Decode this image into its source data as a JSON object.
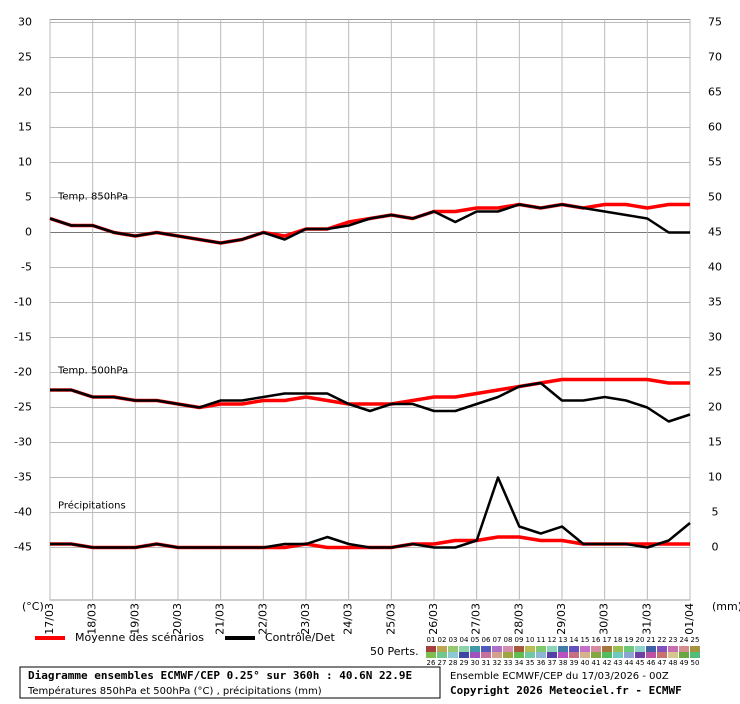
{
  "chart_data": {
    "type": "line",
    "x": [
      0,
      0.5,
      1,
      1.5,
      2,
      2.5,
      3,
      3.5,
      4,
      4.5,
      5,
      5.5,
      6,
      6.5,
      7,
      7.5,
      8,
      8.5,
      9,
      9.5,
      10,
      10.5,
      11,
      11.5,
      12,
      12.5,
      13,
      13.5,
      14,
      14.5,
      15
    ],
    "xlim": [
      0,
      15
    ],
    "xticks": [
      {
        "value": 0,
        "label": "17/03"
      },
      {
        "value": 1,
        "label": "18/03"
      },
      {
        "value": 2,
        "label": "19/03"
      },
      {
        "value": 3,
        "label": "20/03"
      },
      {
        "value": 4,
        "label": "21/03"
      },
      {
        "value": 5,
        "label": "22/03"
      },
      {
        "value": 6,
        "label": "23/03"
      },
      {
        "value": 7,
        "label": "24/03"
      },
      {
        "value": 8,
        "label": "25/03"
      },
      {
        "value": 9,
        "label": "26/03"
      },
      {
        "value": 10,
        "label": "27/03"
      },
      {
        "value": 11,
        "label": "28/03"
      },
      {
        "value": 12,
        "label": "29/03"
      },
      {
        "value": 13,
        "label": "30/03"
      },
      {
        "value": 14,
        "label": "31/03"
      },
      {
        "value": 15,
        "label": "01/04"
      }
    ],
    "ylim": [
      -52.5,
      30
    ],
    "yticks": [
      30,
      25,
      20,
      15,
      10,
      5,
      0,
      -5,
      -10,
      -15,
      -20,
      -25,
      -30,
      -35,
      -40,
      -45
    ],
    "y2lim": [
      -7.5,
      75
    ],
    "y2ticks": [
      75,
      70,
      65,
      60,
      55,
      50,
      45,
      40,
      35,
      30,
      25,
      20,
      15,
      10,
      5,
      0
    ],
    "ylabel": "(°C)",
    "y2label": "(mm)",
    "grid": true,
    "annotations": [
      "Temp. 850hPa",
      "Temp. 500hPa",
      "Précipitations"
    ],
    "series": [
      {
        "name": "Moyenne des scénarios",
        "color": "#ff0000",
        "t850": [
          2,
          1,
          1,
          0,
          -0.5,
          0,
          -0.5,
          -1,
          -1.5,
          -1,
          0,
          -0.5,
          0.5,
          0.5,
          1.5,
          2,
          2.5,
          2,
          3,
          3,
          3.5,
          3.5,
          4,
          3.5,
          4,
          3.5,
          4,
          4,
          3.5,
          4,
          4
        ],
        "t500": [
          -22.5,
          -22.5,
          -23.5,
          -23.5,
          -24,
          -24,
          -24.5,
          -25,
          -24.5,
          -24.5,
          -24,
          -24,
          -23.5,
          -24,
          -24.5,
          -24.5,
          -24.5,
          -24,
          -23.5,
          -23.5,
          -23,
          -22.5,
          -22,
          -21.5,
          -21,
          -21,
          -21,
          -21,
          -21,
          -21.5,
          -21.5
        ],
        "precip": [
          0.5,
          0.5,
          0,
          0,
          0,
          0.5,
          0,
          0,
          0,
          0,
          0,
          0,
          0.5,
          0,
          0,
          0,
          0,
          0.5,
          0.5,
          1,
          1,
          1.5,
          1.5,
          1,
          1,
          0.5,
          0.5,
          0.5,
          0.5,
          0.5,
          0.5
        ]
      },
      {
        "name": "Contrôle/Det",
        "color": "#000000",
        "t850": [
          2,
          1,
          1,
          0,
          -0.5,
          0,
          -0.5,
          -1,
          -1.5,
          -1,
          0,
          -1,
          0.5,
          0.5,
          1,
          2,
          2.5,
          2,
          3,
          1.5,
          3,
          3,
          4,
          3.5,
          4,
          3.5,
          3,
          2.5,
          2,
          0,
          0
        ],
        "t500": [
          -22.5,
          -22.5,
          -23.5,
          -23.5,
          -24,
          -24,
          -24.5,
          -25,
          -24,
          -24,
          -23.5,
          -23,
          -23,
          -23,
          -24.5,
          -25.5,
          -24.5,
          -24.5,
          -25.5,
          -25.5,
          -24.5,
          -23.5,
          -22,
          -21.5,
          -24,
          -24,
          -23.5,
          -24,
          -25,
          -27,
          -26
        ],
        "precip": [
          0.5,
          0.5,
          0,
          0,
          0,
          0.5,
          0,
          0,
          0,
          0,
          0,
          0.5,
          0.5,
          1.5,
          0.5,
          0,
          0,
          0.5,
          0,
          0,
          1,
          10,
          3,
          2,
          3,
          0.5,
          0.5,
          0.5,
          0,
          1,
          3.5
        ]
      }
    ],
    "perturbations_label": "50 Perts.",
    "members": [
      "01",
      "02",
      "03",
      "04",
      "05",
      "06",
      "07",
      "08",
      "09",
      "10",
      "11",
      "12",
      "13",
      "14",
      "15",
      "16",
      "17",
      "18",
      "19",
      "20",
      "21",
      "22",
      "23",
      "24",
      "25",
      "26",
      "27",
      "28",
      "29",
      "30",
      "31",
      "32",
      "33",
      "34",
      "35",
      "36",
      "37",
      "38",
      "39",
      "40",
      "41",
      "42",
      "43",
      "44",
      "45",
      "46",
      "47",
      "48",
      "49",
      "50"
    ],
    "title": "Diagramme ensembles ECMWF/CEP 0.25° sur 360h : 40.6N 22.9E",
    "subtitle": "Températures 850hPa et 500hPa (°C) , précipitations (mm)",
    "run": "Ensemble ECMWF/CEP du 17/03/2026 - 00Z",
    "copyright": "Copyright 2026 Meteociel.fr - ECMWF"
  }
}
